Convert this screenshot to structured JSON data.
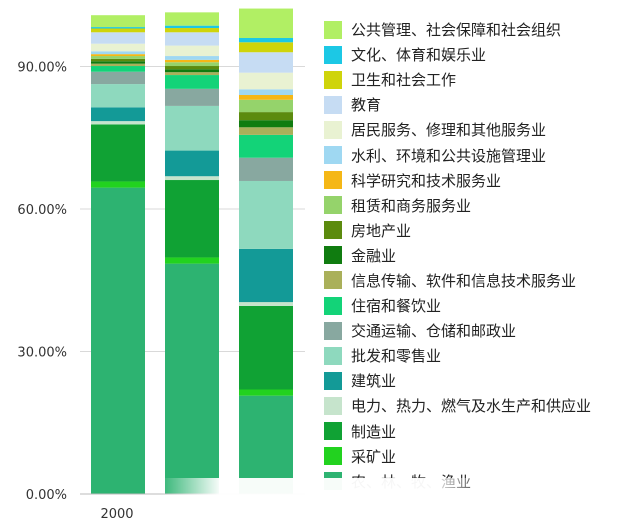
{
  "chart_data": {
    "type": "bar",
    "stacked": true,
    "categories": [
      "2000",
      "",
      ""
    ],
    "ylim": [
      0,
      100
    ],
    "yticks": [
      "0.00%",
      "30.00%",
      "60.00%",
      "90.00%"
    ],
    "ytick_values": [
      0,
      30,
      60,
      90
    ],
    "grid": true,
    "legend_position": "right",
    "series": [
      {
        "name": "农、林、牧、渔业",
        "color": "#2db371",
        "values": [
          64.5,
          48.5,
          20.7
        ]
      },
      {
        "name": "采矿业",
        "color": "#22d21f",
        "values": [
          1.3,
          1.3,
          1.3
        ]
      },
      {
        "name": "制造业",
        "color": "#10a234",
        "values": [
          12.0,
          16.3,
          17.6
        ]
      },
      {
        "name": "电力、热力、燃气及水生产和供应业",
        "color": "#c6e4cc",
        "values": [
          0.7,
          0.8,
          0.8
        ]
      },
      {
        "name": "建筑业",
        "color": "#139a97",
        "values": [
          2.9,
          5.4,
          11.2
        ]
      },
      {
        "name": "批发和零售业",
        "color": "#8ed9be",
        "values": [
          4.9,
          9.4,
          14.3
        ]
      },
      {
        "name": "交通运输、仓储和邮政业",
        "color": "#88a8a0",
        "values": [
          2.6,
          3.6,
          4.9
        ]
      },
      {
        "name": "住宿和餐饮业",
        "color": "#13d378",
        "values": [
          1.2,
          2.9,
          4.8
        ]
      },
      {
        "name": "信息传输、软件和信息技术服务业",
        "color": "#aab05a",
        "values": [
          0.5,
          0.6,
          1.6
        ]
      },
      {
        "name": "金融业",
        "color": "#107c10",
        "values": [
          0.5,
          0.6,
          1.5
        ]
      },
      {
        "name": "房地产业",
        "color": "#5c8b0e",
        "values": [
          0.5,
          0.7,
          1.7
        ]
      },
      {
        "name": "租赁和商务服务业",
        "color": "#95d36b",
        "values": [
          0.6,
          0.8,
          2.6
        ]
      },
      {
        "name": "科学研究和技术服务业",
        "color": "#f5b716",
        "values": [
          0.4,
          0.5,
          1.0
        ]
      },
      {
        "name": "水利、环境和公共设施管理业",
        "color": "#9fd8f2",
        "values": [
          0.6,
          0.8,
          1.2
        ]
      },
      {
        "name": "居民服务、修理和其他服务业",
        "color": "#e9f2d2",
        "values": [
          1.6,
          2.2,
          3.5
        ]
      },
      {
        "name": "教育",
        "color": "#c6dcf3",
        "values": [
          2.4,
          2.8,
          4.3
        ]
      },
      {
        "name": "卫生和社会工作",
        "color": "#cfd40b",
        "values": [
          0.8,
          0.9,
          2.1
        ]
      },
      {
        "name": "文化、体育和娱乐业",
        "color": "#1cc8e5",
        "values": [
          0.3,
          0.5,
          0.9
        ]
      },
      {
        "name": "公共管理、社会保障和社会组织",
        "color": "#b1ef64",
        "values": [
          2.5,
          2.8,
          6.2
        ]
      }
    ]
  }
}
